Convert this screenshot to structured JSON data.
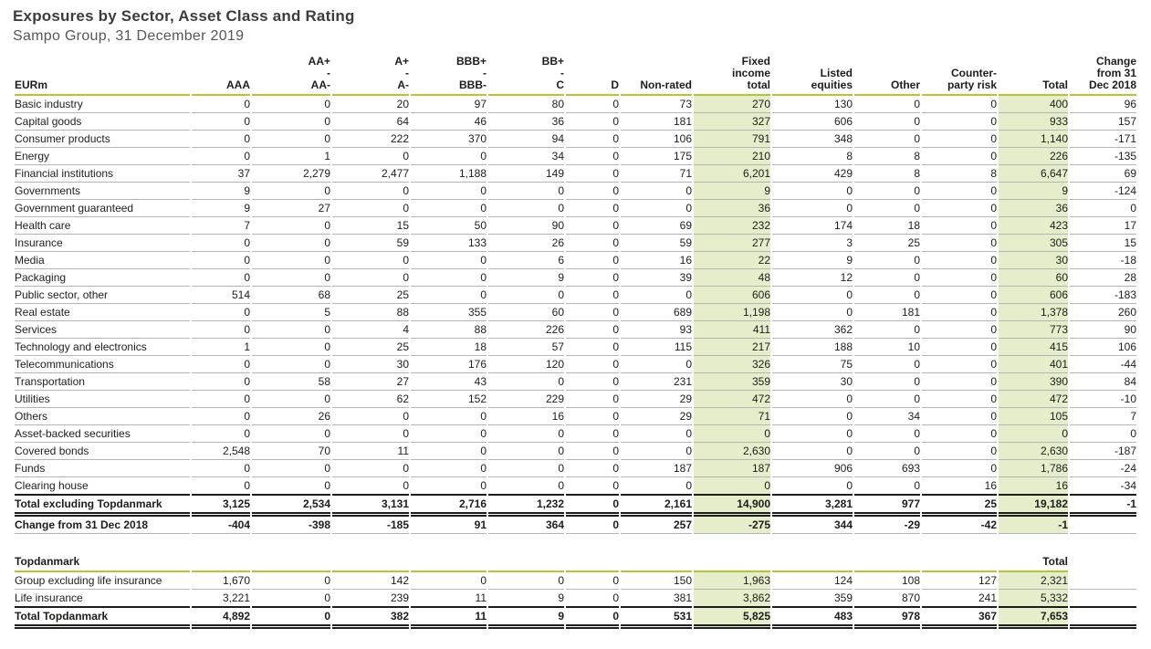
{
  "page": {
    "title": "Exposures by Sector, Asset Class and Rating",
    "subtitle": "Sampo Group, 31 December 2019"
  },
  "colors": {
    "highlight": "#e5edca",
    "accent_line": "#b2c832",
    "text": "#1d1d1b",
    "subtitle_text": "#575756",
    "row_line": "#b4b4b2"
  },
  "main_table": {
    "columns": [
      "EURm",
      "AAA",
      "AA+\n-\nAA-",
      "A+\n-\nA-",
      "BBB+\n-\nBBB-",
      "BB+\n-\nC",
      "D",
      "Non-rated",
      "Fixed\nincome\ntotal",
      "Listed\nequities",
      "Other",
      "Counter-\nparty risk",
      "Total",
      "Change\nfrom 31\nDec 2018"
    ],
    "rows": [
      {
        "label": "Basic industry",
        "values": [
          "0",
          "0",
          "20",
          "97",
          "80",
          "0",
          "73",
          "270",
          "130",
          "0",
          "0",
          "400",
          "96"
        ]
      },
      {
        "label": "Capital goods",
        "values": [
          "0",
          "0",
          "64",
          "46",
          "36",
          "0",
          "181",
          "327",
          "606",
          "0",
          "0",
          "933",
          "157"
        ]
      },
      {
        "label": "Consumer products",
        "values": [
          "0",
          "0",
          "222",
          "370",
          "94",
          "0",
          "106",
          "791",
          "348",
          "0",
          "0",
          "1,140",
          "-171"
        ]
      },
      {
        "label": "Energy",
        "values": [
          "0",
          "1",
          "0",
          "0",
          "34",
          "0",
          "175",
          "210",
          "8",
          "8",
          "0",
          "226",
          "-135"
        ]
      },
      {
        "label": "Financial institutions",
        "values": [
          "37",
          "2,279",
          "2,477",
          "1,188",
          "149",
          "0",
          "71",
          "6,201",
          "429",
          "8",
          "8",
          "6,647",
          "69"
        ]
      },
      {
        "label": "Governments",
        "values": [
          "9",
          "0",
          "0",
          "0",
          "0",
          "0",
          "0",
          "9",
          "0",
          "0",
          "0",
          "9",
          "-124"
        ]
      },
      {
        "label": "Government guaranteed",
        "values": [
          "9",
          "27",
          "0",
          "0",
          "0",
          "0",
          "0",
          "36",
          "0",
          "0",
          "0",
          "36",
          "0"
        ]
      },
      {
        "label": "Health care",
        "values": [
          "7",
          "0",
          "15",
          "50",
          "90",
          "0",
          "69",
          "232",
          "174",
          "18",
          "0",
          "423",
          "17"
        ]
      },
      {
        "label": "Insurance",
        "values": [
          "0",
          "0",
          "59",
          "133",
          "26",
          "0",
          "59",
          "277",
          "3",
          "25",
          "0",
          "305",
          "15"
        ]
      },
      {
        "label": "Media",
        "values": [
          "0",
          "0",
          "0",
          "0",
          "6",
          "0",
          "16",
          "22",
          "9",
          "0",
          "0",
          "30",
          "-18"
        ]
      },
      {
        "label": "Packaging",
        "values": [
          "0",
          "0",
          "0",
          "0",
          "9",
          "0",
          "39",
          "48",
          "12",
          "0",
          "0",
          "60",
          "28"
        ]
      },
      {
        "label": "Public sector, other",
        "values": [
          "514",
          "68",
          "25",
          "0",
          "0",
          "0",
          "0",
          "606",
          "0",
          "0",
          "0",
          "606",
          "-183"
        ]
      },
      {
        "label": "Real estate",
        "values": [
          "0",
          "5",
          "88",
          "355",
          "60",
          "0",
          "689",
          "1,198",
          "0",
          "181",
          "0",
          "1,378",
          "260"
        ]
      },
      {
        "label": "Services",
        "values": [
          "0",
          "0",
          "4",
          "88",
          "226",
          "0",
          "93",
          "411",
          "362",
          "0",
          "0",
          "773",
          "90"
        ]
      },
      {
        "label": "Technology and electronics",
        "values": [
          "1",
          "0",
          "25",
          "18",
          "57",
          "0",
          "115",
          "217",
          "188",
          "10",
          "0",
          "415",
          "106"
        ]
      },
      {
        "label": "Telecommunications",
        "values": [
          "0",
          "0",
          "30",
          "176",
          "120",
          "0",
          "0",
          "326",
          "75",
          "0",
          "0",
          "401",
          "-44"
        ]
      },
      {
        "label": "Transportation",
        "values": [
          "0",
          "58",
          "27",
          "43",
          "0",
          "0",
          "231",
          "359",
          "30",
          "0",
          "0",
          "390",
          "84"
        ]
      },
      {
        "label": "Utilities",
        "values": [
          "0",
          "0",
          "62",
          "152",
          "229",
          "0",
          "29",
          "472",
          "0",
          "0",
          "0",
          "472",
          "-10"
        ]
      },
      {
        "label": "Others",
        "values": [
          "0",
          "26",
          "0",
          "0",
          "16",
          "0",
          "29",
          "71",
          "0",
          "34",
          "0",
          "105",
          "7"
        ]
      },
      {
        "label": "Asset-backed securities",
        "values": [
          "0",
          "0",
          "0",
          "0",
          "0",
          "0",
          "0",
          "0",
          "0",
          "0",
          "0",
          "0",
          "0"
        ]
      },
      {
        "label": "Covered bonds",
        "values": [
          "2,548",
          "70",
          "11",
          "0",
          "0",
          "0",
          "0",
          "2,630",
          "0",
          "0",
          "0",
          "2,630",
          "-187"
        ]
      },
      {
        "label": "Funds",
        "values": [
          "0",
          "0",
          "0",
          "0",
          "0",
          "0",
          "187",
          "187",
          "906",
          "693",
          "0",
          "1,786",
          "-24"
        ]
      },
      {
        "label": "Clearing house",
        "values": [
          "0",
          "0",
          "0",
          "0",
          "0",
          "0",
          "0",
          "0",
          "0",
          "0",
          "16",
          "16",
          "-34"
        ]
      },
      {
        "label": "Total excluding Topdanmark",
        "style": "total",
        "values": [
          "3,125",
          "2,534",
          "3,131",
          "2,716",
          "1,232",
          "0",
          "2,161",
          "14,900",
          "3,281",
          "977",
          "25",
          "19,182",
          "-1"
        ]
      },
      {
        "label": "Change from 31 Dec 2018",
        "style": "change",
        "values": [
          "-404",
          "-398",
          "-185",
          "91",
          "364",
          "0",
          "257",
          "-275",
          "344",
          "-29",
          "-42",
          "-1",
          ""
        ]
      }
    ]
  },
  "topdanmark_table": {
    "section_title": "Topdanmark",
    "total_header": "Total",
    "rows": [
      {
        "label": "Group excluding life insurance",
        "values": [
          "1,670",
          "0",
          "142",
          "0",
          "0",
          "0",
          "150",
          "1,963",
          "124",
          "108",
          "127",
          "2,321",
          ""
        ]
      },
      {
        "label": "Life insurance",
        "values": [
          "3,221",
          "0",
          "239",
          "11",
          "9",
          "0",
          "381",
          "3,862",
          "359",
          "870",
          "241",
          "5,332",
          ""
        ]
      },
      {
        "label": "Total Topdanmark",
        "style": "total",
        "values": [
          "4,892",
          "0",
          "382",
          "11",
          "9",
          "0",
          "531",
          "5,825",
          "483",
          "978",
          "367",
          "7,653",
          ""
        ]
      }
    ]
  }
}
